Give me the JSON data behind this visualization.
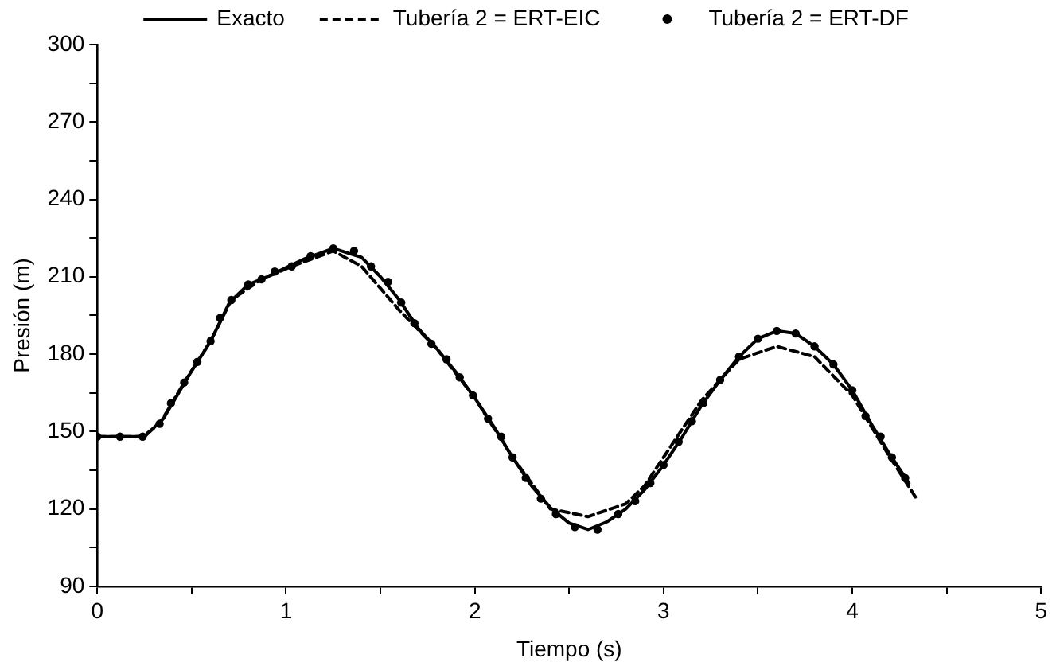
{
  "chart_data": {
    "type": "line",
    "xlabel": "Tiempo (s)",
    "ylabel": "Presión (m)",
    "xlim": [
      0,
      5
    ],
    "ylim": [
      90,
      300
    ],
    "xticks": [
      0,
      {
        "value": 0.5,
        "label": null
      },
      1,
      {
        "value": 1.5,
        "label": null
      },
      2,
      {
        "value": 2.5,
        "label": null
      },
      3,
      {
        "value": 3.5,
        "label": null
      },
      4,
      {
        "value": 4.5,
        "label": null
      },
      5
    ],
    "yticks": [
      90,
      {
        "value": 105,
        "label": null
      },
      120,
      {
        "value": 135,
        "label": null
      },
      150,
      {
        "value": 165,
        "label": null
      },
      180,
      {
        "value": 195,
        "label": null
      },
      210,
      {
        "value": 225,
        "label": null
      },
      240,
      {
        "value": 255,
        "label": null
      },
      270,
      {
        "value": 285,
        "label": null
      },
      300
    ],
    "grid": false,
    "legend": "top",
    "series": [
      {
        "name": "Exacto",
        "color": "#000000",
        "line_style": "solid",
        "marker": "none",
        "x": [
          0,
          0.25,
          0.35,
          0.5,
          0.6,
          0.7,
          0.8,
          0.9,
          1.0,
          1.1,
          1.25,
          1.4,
          1.5,
          1.6,
          1.7,
          1.8,
          1.9,
          2.0,
          2.1,
          2.2,
          2.3,
          2.4,
          2.5,
          2.6,
          2.7,
          2.8,
          2.9,
          3.0,
          3.1,
          3.2,
          3.3,
          3.4,
          3.5,
          3.6,
          3.7,
          3.8,
          3.9,
          4.0,
          4.1,
          4.2,
          4.3
        ],
        "values": [
          148,
          148,
          155,
          173.5,
          185,
          200,
          207,
          210,
          213.5,
          217,
          221,
          217.5,
          210,
          201,
          190,
          182,
          173,
          163,
          152,
          140,
          129,
          120.5,
          114.5,
          112,
          115,
          120,
          127.5,
          137,
          148,
          160,
          170,
          179,
          186,
          189,
          188,
          183,
          176,
          166,
          153,
          141,
          130
        ]
      },
      {
        "name": "Tubería 2 = ERT-EIC",
        "color": "#000000",
        "line_style": "dashed",
        "marker": "none",
        "x": [
          0,
          0.24,
          0.33,
          0.46,
          0.6,
          0.71,
          0.87,
          1.03,
          1.25,
          1.4,
          1.6,
          1.8,
          2.0,
          2.2,
          2.4,
          2.6,
          2.8,
          2.9,
          3.0,
          3.2,
          3.4,
          3.6,
          3.8,
          4.0,
          4.2,
          4.34
        ],
        "values": [
          148,
          148,
          153,
          169,
          185,
          201,
          209,
          214,
          220,
          214,
          197,
          182,
          163,
          140,
          120,
          117,
          122,
          129,
          140,
          162,
          178,
          183,
          179,
          164,
          140,
          124
        ]
      },
      {
        "name": "Tubería 2 = ERT-DF",
        "type": "scatter",
        "color": "#000000",
        "marker": "circle",
        "x": [
          0,
          0.12,
          0.24,
          0.33,
          0.39,
          0.46,
          0.53,
          0.6,
          0.65,
          0.71,
          0.8,
          0.87,
          0.94,
          1.03,
          1.13,
          1.25,
          1.36,
          1.45,
          1.54,
          1.61,
          1.68,
          1.77,
          1.85,
          1.92,
          1.99,
          2.07,
          2.14,
          2.2,
          2.27,
          2.35,
          2.43,
          2.53,
          2.65,
          2.76,
          2.85,
          2.93,
          3.0,
          3.08,
          3.15,
          3.21,
          3.3,
          3.4,
          3.5,
          3.6,
          3.7,
          3.8,
          3.9,
          4.0,
          4.07,
          4.15,
          4.21,
          4.28
        ],
        "values": [
          148,
          148,
          148,
          153,
          161,
          169,
          177,
          185,
          194,
          201,
          207,
          209,
          212,
          214,
          218,
          221,
          220,
          214,
          208,
          200,
          192,
          184,
          178,
          171,
          164,
          155,
          148,
          140,
          132,
          124,
          118,
          113,
          112,
          118,
          123,
          130,
          137,
          146,
          154,
          161,
          170,
          179,
          186,
          189,
          188,
          183,
          176,
          166,
          156,
          148,
          140,
          132
        ]
      }
    ]
  }
}
